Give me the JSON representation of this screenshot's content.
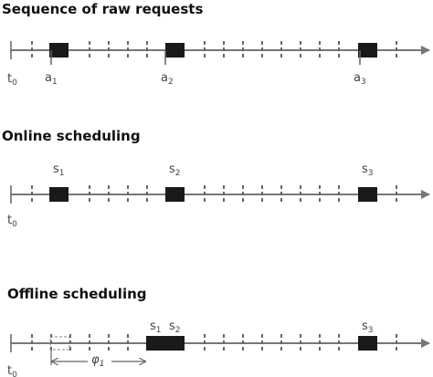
{
  "panels": [
    {
      "title": "Sequence of raw requests",
      "origin": {
        "base": "t",
        "sub": "0"
      },
      "labels": [
        {
          "base": "a",
          "sub": "1"
        },
        {
          "base": "a",
          "sub": "2"
        },
        {
          "base": "a",
          "sub": "3"
        }
      ]
    },
    {
      "title": "Online scheduling",
      "origin": {
        "base": "t",
        "sub": "0"
      },
      "labels": [
        {
          "base": "s",
          "sub": "1"
        },
        {
          "base": "s",
          "sub": "2"
        },
        {
          "base": "s",
          "sub": "3"
        }
      ]
    },
    {
      "title": "Offline scheduling",
      "origin": {
        "base": "t",
        "sub": "0"
      },
      "labels": [
        {
          "base": "s",
          "sub": "1"
        },
        {
          "base": "s",
          "sub": "2"
        },
        {
          "base": "s",
          "sub": "3"
        }
      ]
    }
  ],
  "offset_label": {
    "base": "φ",
    "sub": "1"
  }
}
